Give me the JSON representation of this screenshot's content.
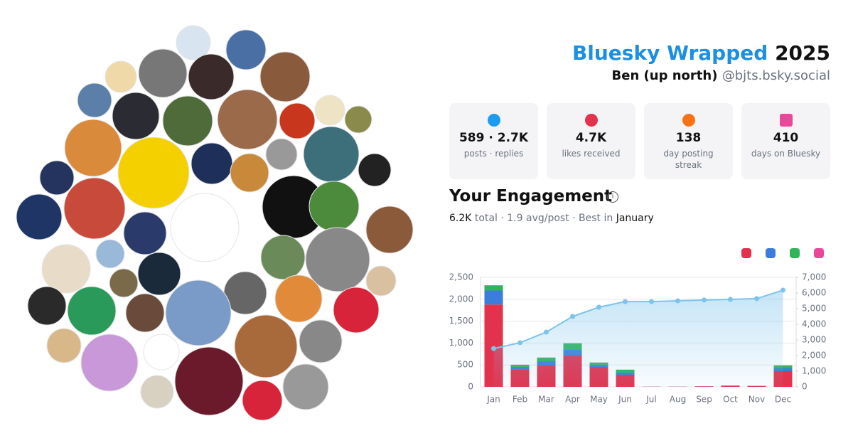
{
  "header": {
    "title": "Bluesky Wrapped",
    "year": "2025",
    "display_name": "Ben (up north)",
    "handle": "@bjts.bsky.social"
  },
  "stats": [
    {
      "value": "589 · 2.7K",
      "label": "posts · replies"
    },
    {
      "value": "4.7K",
      "label": "likes received"
    },
    {
      "value": "138",
      "label": "day posting streak"
    },
    {
      "value": "410",
      "label": "days on Bluesky"
    }
  ],
  "engagement": {
    "title": "Your Engagement",
    "summary": [
      "6.2K",
      "total · 1.9 avg/post · Best in",
      "January"
    ]
  },
  "chart_data": {
    "type": "bar",
    "categories": [
      "Jan",
      "Feb",
      "Mar",
      "Apr",
      "May",
      "Jun",
      "Jul",
      "Aug",
      "Sep",
      "Oct",
      "Nov",
      "Dec"
    ],
    "series": [
      {
        "color": "#e3324d",
        "values": [
          1880,
          390,
          487,
          714,
          455,
          276,
          4,
          4,
          12,
          25,
          20,
          357
        ]
      },
      {
        "color": "#3b7ddd",
        "values": [
          320,
          65,
          97,
          130,
          50,
          49,
          1,
          1,
          2,
          3,
          3,
          65
        ]
      },
      {
        "color": "#2fb457",
        "values": [
          110,
          48,
          81,
          146,
          47,
          65,
          0,
          0,
          1,
          2,
          2,
          65
        ]
      },
      {
        "color": "#ec4899",
        "values": [
          10,
          3,
          4,
          5,
          3,
          3,
          0,
          0,
          0,
          0,
          0,
          3
        ]
      },
      {
        "type": "line",
        "axis": "y2",
        "color": "#7cc4ec",
        "values": [
          2450,
          2820,
          3500,
          4500,
          5090,
          5450,
          5450,
          5500,
          5550,
          5590,
          5640,
          6180
        ]
      }
    ],
    "ylim": [
      0,
      2500
    ],
    "yticks": [
      0,
      500,
      {
        "value": 1000,
        "label": "1,000"
      },
      {
        "value": 1500,
        "label": "1,500"
      },
      {
        "value": 2000,
        "label": "2,000"
      },
      {
        "value": 2500,
        "label": "2,500"
      }
    ],
    "y2lim": [
      0,
      7000
    ],
    "y2ticks": [
      0,
      {
        "value": 1000,
        "label": "1,000"
      },
      {
        "value": 2000,
        "label": "2,000"
      },
      {
        "value": 3000,
        "label": "3,000"
      },
      {
        "value": 4000,
        "label": "4,000"
      },
      {
        "value": 5000,
        "label": "5,000"
      },
      {
        "value": 6000,
        "label": "6,000"
      },
      {
        "value": 7000,
        "label": "7,000"
      }
    ],
    "grid": true
  }
}
